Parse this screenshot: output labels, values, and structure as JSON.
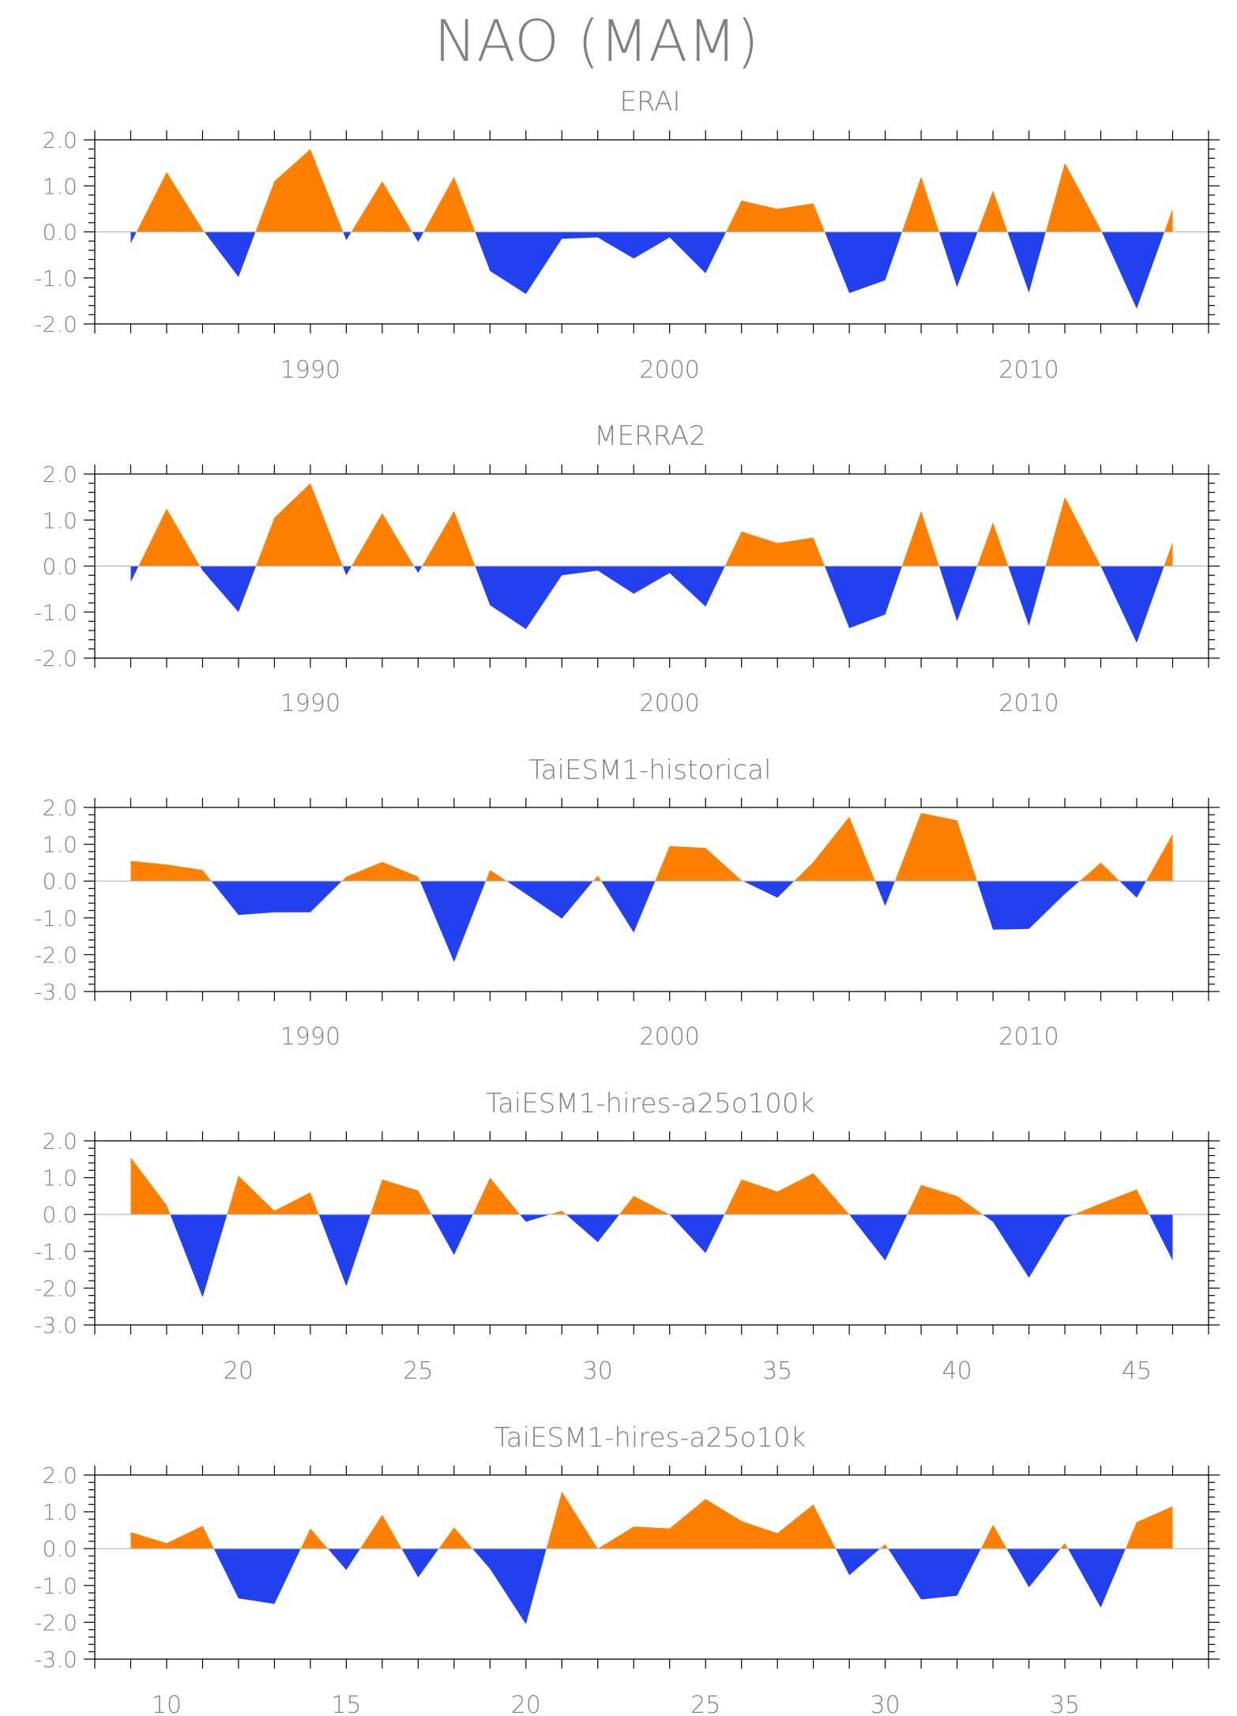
{
  "figure": {
    "title": "NAO (MAM)"
  },
  "colors": {
    "positive": "#ff8000",
    "negative": "#2340ee",
    "text": "#808080",
    "axis": "#000000"
  },
  "chart_data": [
    {
      "type": "area",
      "title": "ERAI",
      "xlabel": "",
      "ylabel": "",
      "xlim": [
        1984,
        2015
      ],
      "ylim": [
        -2.0,
        2.0
      ],
      "xticks": [
        1990,
        2000,
        2010
      ],
      "yticks": [
        "2.0",
        "1.0",
        "0.0",
        "-1.0",
        "-2.0"
      ],
      "x": [
        1985,
        1986,
        1987,
        1988,
        1989,
        1990,
        1991,
        1992,
        1993,
        1994,
        1995,
        1996,
        1997,
        1998,
        1999,
        2000,
        2001,
        2002,
        2003,
        2004,
        2005,
        2006,
        2007,
        2008,
        2009,
        2010,
        2011,
        2012,
        2013,
        2014
      ],
      "values": [
        -0.25,
        1.3,
        0.05,
        -0.98,
        1.1,
        1.8,
        -0.18,
        1.1,
        -0.22,
        1.2,
        -0.85,
        -1.35,
        -0.15,
        -0.12,
        -0.58,
        -0.12,
        -0.9,
        0.68,
        0.5,
        0.62,
        -1.33,
        -1.05,
        1.2,
        -1.2,
        0.9,
        -1.32,
        1.5,
        0.05,
        -1.67,
        0.5
      ]
    },
    {
      "type": "area",
      "title": "MERRA2",
      "xlabel": "",
      "ylabel": "",
      "xlim": [
        1984,
        2015
      ],
      "ylim": [
        -2.0,
        2.0
      ],
      "xticks": [
        1990,
        2000,
        2010
      ],
      "yticks": [
        "2.0",
        "1.0",
        "0.0",
        "-1.0",
        "-2.0"
      ],
      "x": [
        1985,
        1986,
        1987,
        1988,
        1989,
        1990,
        1991,
        1992,
        1993,
        1994,
        1995,
        1996,
        1997,
        1998,
        1999,
        2000,
        2001,
        2002,
        2003,
        2004,
        2005,
        2006,
        2007,
        2008,
        2009,
        2010,
        2011,
        2012,
        2013,
        2014
      ],
      "values": [
        -0.35,
        1.25,
        -0.1,
        -1.0,
        1.05,
        1.8,
        -0.2,
        1.15,
        -0.15,
        1.2,
        -0.85,
        -1.37,
        -0.2,
        -0.1,
        -0.6,
        -0.15,
        -0.88,
        0.75,
        0.5,
        0.62,
        -1.35,
        -1.05,
        1.2,
        -1.2,
        0.95,
        -1.3,
        1.5,
        0.0,
        -1.67,
        0.52
      ]
    },
    {
      "type": "area",
      "title": "TaiESM1-historical",
      "xlabel": "",
      "ylabel": "",
      "xlim": [
        1984,
        2015
      ],
      "ylim": [
        -3.0,
        2.0
      ],
      "xticks": [
        1990,
        2000,
        2010
      ],
      "yticks": [
        "2.0",
        "1.0",
        "0.0",
        "-1.0",
        "-2.0",
        "-3.0"
      ],
      "x": [
        1985,
        1986,
        1987,
        1988,
        1989,
        1990,
        1991,
        1992,
        1993,
        1994,
        1995,
        1996,
        1997,
        1998,
        1999,
        2000,
        2001,
        2002,
        2003,
        2004,
        2005,
        2006,
        2007,
        2008,
        2009,
        2010,
        2011,
        2012,
        2013,
        2014
      ],
      "values": [
        0.55,
        0.45,
        0.3,
        -0.92,
        -0.85,
        -0.85,
        0.12,
        0.52,
        0.12,
        -2.2,
        0.3,
        -0.35,
        -1.02,
        0.15,
        -1.4,
        0.95,
        0.9,
        0.02,
        -0.45,
        0.52,
        1.75,
        -0.68,
        1.85,
        1.65,
        -1.32,
        -1.3,
        -0.35,
        0.5,
        -0.45,
        1.28
      ]
    },
    {
      "type": "area",
      "title": "TaiESM1-hires-a25o100k",
      "xlabel": "",
      "ylabel": "",
      "xlim": [
        16,
        47
      ],
      "ylim": [
        -3.0,
        2.0
      ],
      "xticks": [
        20,
        25,
        30,
        35,
        40,
        45
      ],
      "yticks": [
        "2.0",
        "1.0",
        "0.0",
        "-1.0",
        "-2.0",
        "-3.0"
      ],
      "x": [
        17,
        18,
        19,
        20,
        21,
        22,
        23,
        24,
        25,
        26,
        27,
        28,
        29,
        30,
        31,
        32,
        33,
        34,
        35,
        36,
        37,
        38,
        39,
        40,
        41,
        42,
        43,
        44,
        45,
        46
      ],
      "values": [
        1.55,
        0.25,
        -2.25,
        1.05,
        0.1,
        0.6,
        -1.95,
        0.95,
        0.65,
        -1.1,
        1.0,
        -0.2,
        0.1,
        -0.75,
        0.5,
        0.0,
        -1.05,
        0.95,
        0.62,
        1.12,
        0.0,
        -1.25,
        0.8,
        0.5,
        -0.2,
        -1.72,
        -0.1,
        0.3,
        0.68,
        -1.25
      ]
    },
    {
      "type": "area",
      "title": "TaiESM1-hires-a25o10k",
      "xlabel": "",
      "ylabel": "",
      "xlim": [
        8,
        39
      ],
      "ylim": [
        -3.0,
        2.0
      ],
      "xticks": [
        10,
        15,
        20,
        25,
        30,
        35
      ],
      "yticks": [
        "2.0",
        "1.0",
        "0.0",
        "-1.0",
        "-2.0",
        "-3.0"
      ],
      "x": [
        9,
        10,
        11,
        12,
        13,
        14,
        15,
        16,
        17,
        18,
        19,
        20,
        21,
        22,
        23,
        24,
        25,
        26,
        27,
        28,
        29,
        30,
        31,
        32,
        33,
        34,
        35,
        36,
        37,
        38
      ],
      "values": [
        0.45,
        0.15,
        0.62,
        -1.35,
        -1.5,
        0.55,
        -0.58,
        0.92,
        -0.78,
        0.58,
        -0.55,
        -2.05,
        1.55,
        0.0,
        0.6,
        0.55,
        1.35,
        0.75,
        0.42,
        1.2,
        -0.72,
        0.12,
        -1.38,
        -1.28,
        0.65,
        -1.05,
        0.15,
        -1.6,
        0.72,
        1.15
      ]
    }
  ]
}
